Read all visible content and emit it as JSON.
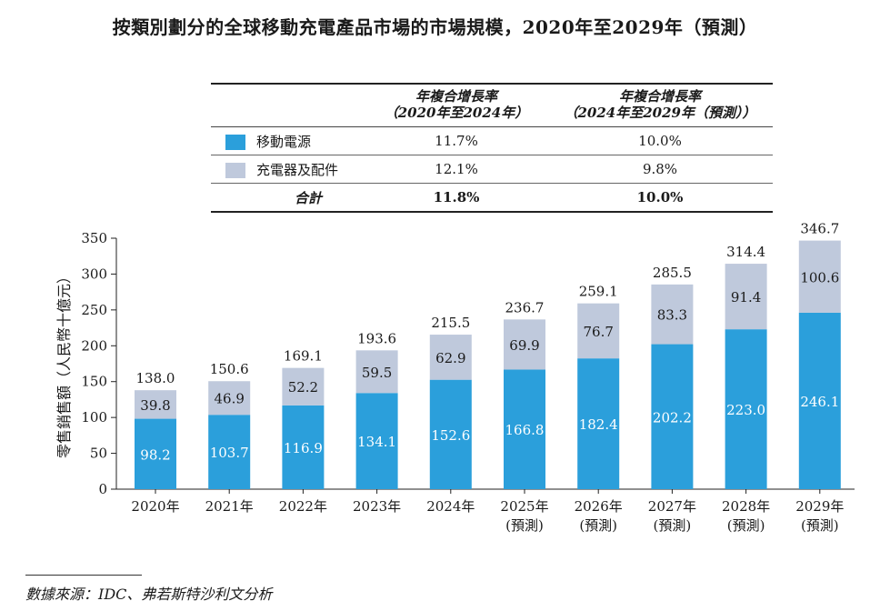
{
  "title": "按類別劃分的全球移動充電產品市場的市場規模，2020年至2029年（預測）",
  "table": {
    "header": {
      "col1_line1": "年複合增長率",
      "col1_line2": "（2020年至2024年）",
      "col2_line1": "年複合增長率",
      "col2_line2": "（2024年至2029年（預測））"
    },
    "rows": [
      {
        "name": "移動電源",
        "cagr1": "11.7%",
        "cagr2": "10.0%"
      },
      {
        "name": "充電器及配件",
        "cagr1": "12.1%",
        "cagr2": "9.8%"
      }
    ],
    "total": {
      "name": "合計",
      "cagr1": "11.8%",
      "cagr2": "10.0%"
    }
  },
  "colors": {
    "power_bank": "#2b9fdb",
    "charger": "#bfc9dc"
  },
  "chart_data": {
    "type": "bar",
    "stacked": true,
    "ylabel": "零售銷售額（人民幣十億元）",
    "ylim": [
      0,
      350
    ],
    "yticks": [
      0,
      50,
      100,
      150,
      200,
      250,
      300,
      350
    ],
    "categories": [
      "2020年",
      "2021年",
      "2022年",
      "2023年",
      "2024年",
      "2025年",
      "2026年",
      "2027年",
      "2028年",
      "2029年"
    ],
    "category_sublabels": [
      "",
      "",
      "",
      "",
      "",
      "(預測)",
      "(預測)",
      "(預測)",
      "(預測)",
      "(預測)"
    ],
    "series": [
      {
        "name": "移動電源",
        "values": [
          98.2,
          103.7,
          116.9,
          134.1,
          152.6,
          166.8,
          182.4,
          202.2,
          223.0,
          246.1
        ]
      },
      {
        "name": "充電器及配件",
        "values": [
          39.8,
          46.9,
          52.2,
          59.5,
          62.9,
          69.9,
          76.7,
          83.3,
          91.4,
          100.6
        ]
      }
    ],
    "totals": [
      138.0,
      150.6,
      169.1,
      193.6,
      215.5,
      236.7,
      259.1,
      285.5,
      314.4,
      346.7
    ]
  },
  "source": "數據來源：IDC、弗若斯特沙利文分析"
}
